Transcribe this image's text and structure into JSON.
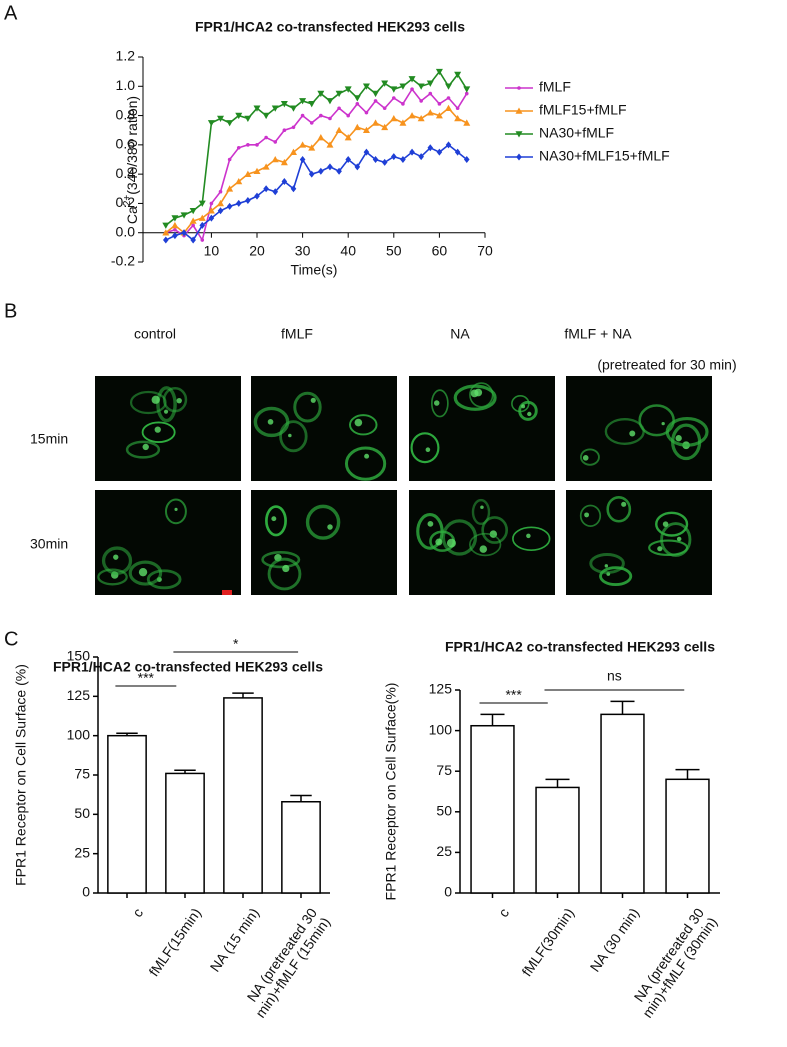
{
  "panel_labels": [
    "A",
    "B",
    "C"
  ],
  "image_panel": {
    "columns": [
      "control",
      "fMLF",
      "NA",
      "fMLF + NA"
    ],
    "note": "(pretreated for 30 min)",
    "rows": [
      "15min",
      "30min"
    ]
  },
  "chart_data": [
    {
      "type": "line",
      "title": "FPR1/HCA2 co-transfected HEK293 cells",
      "xlabel": "Time(s)",
      "ylabel": {
        "main": "Ca",
        "sup": "2+",
        "rest": "(340/380 ration)"
      },
      "x": [
        0,
        2,
        4,
        6,
        8,
        10,
        12,
        14,
        16,
        18,
        20,
        22,
        24,
        26,
        28,
        30,
        32,
        34,
        36,
        38,
        40,
        42,
        44,
        46,
        48,
        50,
        52,
        54,
        56,
        58,
        60,
        62,
        64,
        66
      ],
      "series": [
        {
          "name": "fMLF",
          "color": "#cc33cc",
          "marker": "dot",
          "values": [
            0,
            0.02,
            -0.02,
            0.05,
            -0.05,
            0.2,
            0.28,
            0.5,
            0.58,
            0.6,
            0.6,
            0.65,
            0.62,
            0.7,
            0.72,
            0.8,
            0.75,
            0.8,
            0.78,
            0.85,
            0.8,
            0.88,
            0.82,
            0.9,
            0.85,
            0.92,
            0.88,
            0.98,
            0.9,
            0.95,
            0.88,
            0.92,
            0.85,
            0.95
          ]
        },
        {
          "name": "fMLF15+fMLF",
          "color": "#f7931e",
          "marker": "triangle-up",
          "values": [
            0,
            0.05,
            0,
            0.08,
            0.1,
            0.15,
            0.2,
            0.3,
            0.35,
            0.4,
            0.42,
            0.45,
            0.5,
            0.48,
            0.55,
            0.6,
            0.58,
            0.65,
            0.6,
            0.7,
            0.65,
            0.72,
            0.7,
            0.75,
            0.72,
            0.78,
            0.75,
            0.8,
            0.78,
            0.82,
            0.8,
            0.85,
            0.78,
            0.75
          ]
        },
        {
          "name": "NA30+fMLF",
          "color": "#228b22",
          "marker": "triangle-down",
          "values": [
            0.05,
            0.1,
            0.12,
            0.15,
            0.2,
            0.75,
            0.78,
            0.75,
            0.8,
            0.78,
            0.85,
            0.8,
            0.85,
            0.88,
            0.85,
            0.9,
            0.88,
            0.95,
            0.9,
            0.95,
            0.98,
            0.92,
            1.0,
            0.95,
            1.02,
            0.98,
            1.0,
            1.05,
            1.0,
            1.02,
            1.1,
            1.0,
            1.08,
            0.98
          ]
        },
        {
          "name": "NA30+fMLF15+fMLF",
          "color": "#1f3fd6",
          "marker": "diamond",
          "values": [
            -0.05,
            -0.02,
            0,
            -0.05,
            0.05,
            0.1,
            0.15,
            0.18,
            0.2,
            0.22,
            0.25,
            0.3,
            0.28,
            0.35,
            0.3,
            0.5,
            0.4,
            0.42,
            0.45,
            0.42,
            0.5,
            0.45,
            0.55,
            0.5,
            0.48,
            0.52,
            0.5,
            0.55,
            0.52,
            0.58,
            0.55,
            0.6,
            0.55,
            0.5
          ]
        }
      ],
      "xlim": [
        -5,
        70
      ],
      "xticks": [
        10,
        20,
        30,
        40,
        50,
        60,
        70
      ],
      "ylim": [
        -0.2,
        1.2
      ],
      "yticks": [
        -0.2,
        {
          "value": 0,
          "label": "0.0"
        },
        0.2,
        0.4,
        0.6,
        0.8,
        {
          "value": 1,
          "label": "1.0"
        },
        1.2
      ]
    },
    {
      "type": "bar",
      "title": "FPR1/HCA2 co-transfected HEK293 cells",
      "ylabel": "FPR1 Receptor on Cell Surface (%)",
      "categories": [
        "c",
        "fMLF(15min)",
        "NA (15 min)",
        "NA (pretreated 30 min)+fMLF (15min)"
      ],
      "values": [
        100,
        76,
        124,
        58
      ],
      "errors": [
        1.5,
        2,
        3,
        4
      ],
      "annotations": [
        "***",
        "*"
      ],
      "ylim": [
        0,
        150
      ],
      "yticks": [
        0,
        25,
        50,
        75,
        100,
        125,
        150
      ]
    },
    {
      "type": "bar",
      "title": "FPR1/HCA2 co-transfected HEK293 cells",
      "ylabel": "FPR1 Receptor on Cell Surface(%)",
      "categories": [
        "c",
        "fMLF(30min)",
        "NA (30 min)",
        "NA (pretreated 30 min)+fMLF (30min)"
      ],
      "values": [
        103,
        65,
        110,
        70
      ],
      "errors": [
        7,
        5,
        8,
        6
      ],
      "annotations": [
        "***",
        "ns"
      ],
      "ylim": [
        0,
        125
      ],
      "yticks": [
        0,
        25,
        50,
        75,
        100,
        125
      ]
    }
  ]
}
